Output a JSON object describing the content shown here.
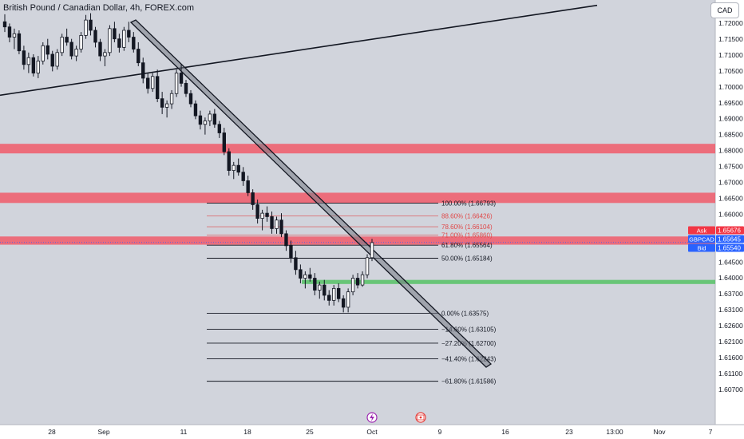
{
  "header": {
    "title": "British Pound / Canadian Dollar, 4h, FOREX.com",
    "currency": "CAD"
  },
  "colors": {
    "bull": "#ffffff",
    "bear": "#131722",
    "zone": "#f15a6a",
    "support": "#5cc36b",
    "fib_red": "#e04848",
    "fib_line": "#131722",
    "ask_bg": "#f23645",
    "symbol_bg": "#2962ff"
  },
  "badges": {
    "ask_label": "Ask",
    "ask_value": "1.65676",
    "symbol_label": "GBPCAD",
    "symbol_value": "1.65645",
    "bid_label": "Bid",
    "bid_value": "1.65540"
  },
  "icons": {
    "event1": "lightning-icon",
    "event2": "canada-flag-icon"
  },
  "chart_data": {
    "type": "candlestick",
    "title": "British Pound / Canadian Dollar, 4h, FOREX.com",
    "ylim": [
      1.6055,
      1.7255
    ],
    "y_ticks": [
      "1.72000",
      "1.71500",
      "1.71000",
      "1.70500",
      "1.70000",
      "1.69500",
      "1.69000",
      "1.68500",
      "1.68000",
      "1.67500",
      "1.67000",
      "1.66500",
      "1.66000",
      "1.65500",
      "1.65000",
      "1.64500",
      "1.64000",
      "1.63700",
      "1.63100",
      "1.62600",
      "1.62100",
      "1.61600",
      "1.61100",
      "1.60700"
    ],
    "x_ticks": [
      "28",
      "Sep",
      "11",
      "18",
      "25",
      "Oct",
      "9",
      "16",
      "23",
      "13:00",
      "Nov",
      "7"
    ],
    "resistance_zones": [
      [
        1.6825,
        1.6853
      ],
      [
        1.668,
        1.671
      ],
      [
        1.6558,
        1.6582
      ]
    ],
    "support_zone": [
      1.6443,
      1.6455
    ],
    "fibonacci": [
      {
        "label": "100.00% (1.66793)",
        "price": 1.66793
      },
      {
        "label": "88.60% (1.66426)",
        "price": 1.66426
      },
      {
        "label": "78.60% (1.66104)",
        "price": 1.66104
      },
      {
        "label": "71.00% (1.65860)",
        "price": 1.6586
      },
      {
        "label": "61.80% (1.65564)",
        "price": 1.65564
      },
      {
        "label": "50.00% (1.65184)",
        "price": 1.65184
      },
      {
        "label": "0.00% (1.63575)",
        "price": 1.63575
      },
      {
        "label": "−14.60% (1.63105)",
        "price": 1.63105
      },
      {
        "label": "−27.20% (1.62700)",
        "price": 1.627
      },
      {
        "label": "−41.40% (1.62243)",
        "price": 1.62243
      },
      {
        "label": "−61.80% (1.61586)",
        "price": 1.61586
      }
    ],
    "candles": [
      [
        1.721,
        1.7232,
        1.718,
        1.7195
      ],
      [
        1.7195,
        1.7205,
        1.715,
        1.7165
      ],
      [
        1.7165,
        1.719,
        1.713,
        1.7175
      ],
      [
        1.7175,
        1.7185,
        1.7115,
        1.7125
      ],
      [
        1.7125,
        1.714,
        1.707,
        1.7085
      ],
      [
        1.7085,
        1.712,
        1.706,
        1.7105
      ],
      [
        1.7105,
        1.7115,
        1.705,
        1.706
      ],
      [
        1.706,
        1.711,
        1.7045,
        1.7095
      ],
      [
        1.7095,
        1.715,
        1.7085,
        1.714
      ],
      [
        1.714,
        1.716,
        1.71,
        1.7115
      ],
      [
        1.7115,
        1.7125,
        1.7065,
        1.708
      ],
      [
        1.708,
        1.713,
        1.707,
        1.712
      ],
      [
        1.712,
        1.7175,
        1.711,
        1.7165
      ],
      [
        1.7165,
        1.719,
        1.714,
        1.715
      ],
      [
        1.715,
        1.716,
        1.71,
        1.711
      ],
      [
        1.711,
        1.714,
        1.7095,
        1.713
      ],
      [
        1.713,
        1.718,
        1.712,
        1.717
      ],
      [
        1.717,
        1.723,
        1.716,
        1.7215
      ],
      [
        1.7215,
        1.7235,
        1.717,
        1.7185
      ],
      [
        1.7185,
        1.7195,
        1.7135,
        1.715
      ],
      [
        1.715,
        1.716,
        1.7095,
        1.711
      ],
      [
        1.711,
        1.713,
        1.708,
        1.712
      ],
      [
        1.712,
        1.72,
        1.711,
        1.719
      ],
      [
        1.719,
        1.721,
        1.715,
        1.716
      ],
      [
        1.716,
        1.7175,
        1.712,
        1.7135
      ],
      [
        1.7135,
        1.7195,
        1.7125,
        1.7185
      ],
      [
        1.7185,
        1.721,
        1.715,
        1.7165
      ],
      [
        1.7165,
        1.718,
        1.712,
        1.713
      ],
      [
        1.713,
        1.715,
        1.708,
        1.709
      ],
      [
        1.709,
        1.7105,
        1.703,
        1.7045
      ],
      [
        1.7045,
        1.706,
        1.7,
        1.7015
      ],
      [
        1.7015,
        1.706,
        1.7005,
        1.705
      ],
      [
        1.705,
        1.707,
        1.6975,
        1.6985
      ],
      [
        1.6985,
        1.7005,
        1.694,
        1.696
      ],
      [
        1.696,
        1.698,
        1.693,
        1.697
      ],
      [
        1.697,
        1.701,
        1.6955,
        1.7
      ],
      [
        1.7,
        1.707,
        1.699,
        1.706
      ],
      [
        1.706,
        1.7085,
        1.702,
        1.703
      ],
      [
        1.703,
        1.704,
        1.699,
        1.7
      ],
      [
        1.7,
        1.701,
        1.696,
        1.697
      ],
      [
        1.697,
        1.698,
        1.6925,
        1.6935
      ],
      [
        1.6935,
        1.695,
        1.6895,
        1.691
      ],
      [
        1.691,
        1.693,
        1.688,
        1.692
      ],
      [
        1.692,
        1.695,
        1.6905,
        1.694
      ],
      [
        1.694,
        1.6955,
        1.69,
        1.691
      ],
      [
        1.691,
        1.692,
        1.687,
        1.6885
      ],
      [
        1.6885,
        1.69,
        1.682,
        1.683
      ],
      [
        1.683,
        1.684,
        1.676,
        1.6775
      ],
      [
        1.6775,
        1.68,
        1.675,
        1.679
      ],
      [
        1.679,
        1.681,
        1.676,
        1.677
      ],
      [
        1.677,
        1.6785,
        1.673,
        1.6745
      ],
      [
        1.6745,
        1.676,
        1.67,
        1.671
      ],
      [
        1.671,
        1.672,
        1.666,
        1.6675
      ],
      [
        1.6675,
        1.669,
        1.662,
        1.6635
      ],
      [
        1.6635,
        1.666,
        1.66,
        1.665
      ],
      [
        1.665,
        1.667,
        1.6625,
        1.664
      ],
      [
        1.664,
        1.6655,
        1.659,
        1.6605
      ],
      [
        1.6605,
        1.664,
        1.659,
        1.663
      ],
      [
        1.663,
        1.665,
        1.658,
        1.659
      ],
      [
        1.659,
        1.66,
        1.654,
        1.6555
      ],
      [
        1.6555,
        1.657,
        1.6505,
        1.652
      ],
      [
        1.652,
        1.654,
        1.647,
        1.6485
      ],
      [
        1.6485,
        1.65,
        1.6445,
        1.646
      ],
      [
        1.646,
        1.648,
        1.643,
        1.647
      ],
      [
        1.647,
        1.649,
        1.645,
        1.646
      ],
      [
        1.646,
        1.6475,
        1.641,
        1.6425
      ],
      [
        1.6425,
        1.645,
        1.64,
        1.644
      ],
      [
        1.644,
        1.6455,
        1.6395,
        1.641
      ],
      [
        1.641,
        1.6425,
        1.638,
        1.6395
      ],
      [
        1.6395,
        1.644,
        1.638,
        1.643
      ],
      [
        1.643,
        1.6445,
        1.639,
        1.64
      ],
      [
        1.64,
        1.641,
        1.636,
        1.6375
      ],
      [
        1.6375,
        1.643,
        1.636,
        1.642
      ],
      [
        1.642,
        1.647,
        1.641,
        1.646
      ],
      [
        1.646,
        1.6475,
        1.643,
        1.644
      ],
      [
        1.644,
        1.648,
        1.6435,
        1.647
      ],
      [
        1.647,
        1.653,
        1.646,
        1.652
      ],
      [
        1.652,
        1.6575,
        1.651,
        1.6564
      ]
    ]
  }
}
